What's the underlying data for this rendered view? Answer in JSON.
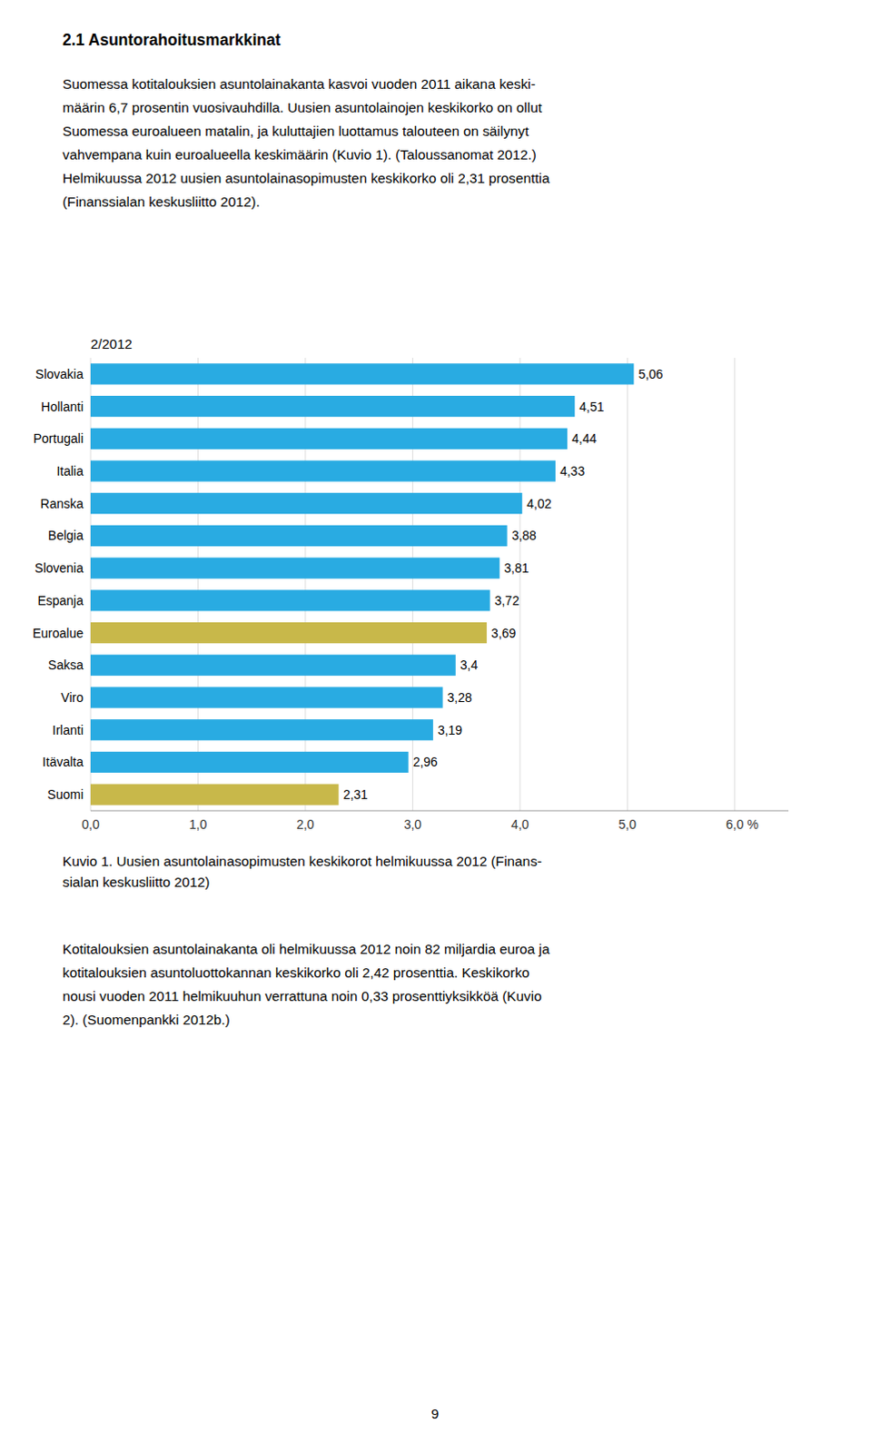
{
  "heading": "2.1 Asuntorahoitusmarkkinat",
  "paragraphs": [
    "Suomessa kotitalouksien asuntolainakanta kasvoi vuoden 2011 aikana keski-\nmäärin 6,7 prosentin vuosivauhdilla. Uusien asuntolainojen keskikorko on ollut\nSuomessa euroalueen matalin, ja kuluttajien luottamus talouteen on säilynyt\nvahvempana kuin euroalueella keskimäärin (Kuvio 1). (Taloussanomat 2012.)\nHelmikuussa 2012 uusien asuntolainasopimusten keskikorko oli 2,31 prosenttia\n(Finanssialan keskusliitto 2012).",
    "Kotitalouksien asuntolainakanta oli helmikuussa 2012 noin 82 miljardia euroa ja\nkotitalouksien asuntoluottokannan keskikorko oli 2,42 prosenttia. Keskikorko\nnousi vuoden 2011 helmikuuhun verrattuna noin 0,33 prosenttiyksikköä (Kuvio\n2). (Suomenpankki 2012b.)"
  ],
  "caption": "Kuvio 1. Uusien asuntolainasopimusten keskikorot helmikuussa 2012 (Finans-\nsialan keskusliitto 2012)",
  "page_number": "9",
  "chart_data": {
    "type": "bar",
    "orientation": "horizontal",
    "title": "2/2012",
    "categories": [
      "Slovakia",
      "Hollanti",
      "Portugali",
      "Italia",
      "Ranska",
      "Belgia",
      "Slovenia",
      "Espanja",
      "Euroalue",
      "Saksa",
      "Viro",
      "Irlanti",
      "Itävalta",
      "Suomi"
    ],
    "values": [
      5.06,
      4.51,
      4.44,
      4.33,
      4.02,
      3.88,
      3.81,
      3.72,
      3.69,
      3.4,
      3.28,
      3.19,
      2.96,
      2.31
    ],
    "value_labels": [
      "5,06",
      "4,51",
      "4,44",
      "4,33",
      "4,02",
      "3,88",
      "3,81",
      "3,72",
      "3,69",
      "3,4",
      "3,28",
      "3,19",
      "2,96",
      "2,31"
    ],
    "colors": [
      "#29ABE2",
      "#29ABE2",
      "#29ABE2",
      "#29ABE2",
      "#29ABE2",
      "#29ABE2",
      "#29ABE2",
      "#29ABE2",
      "#C8B84A",
      "#29ABE2",
      "#29ABE2",
      "#29ABE2",
      "#29ABE2",
      "#C8B84A"
    ],
    "data_labels": true,
    "xlabel": "%",
    "xlim": [
      0,
      6.5
    ],
    "xticks": [
      {
        "value": 0.0,
        "label": "0,0"
      },
      {
        "value": 1.0,
        "label": "1,0"
      },
      {
        "value": 2.0,
        "label": "2,0"
      },
      {
        "value": 3.0,
        "label": "3,0"
      },
      {
        "value": 4.0,
        "label": "4,0"
      },
      {
        "value": 5.0,
        "label": "5,0"
      },
      {
        "value": 6.0,
        "label": "6,0"
      }
    ],
    "grid": true
  }
}
